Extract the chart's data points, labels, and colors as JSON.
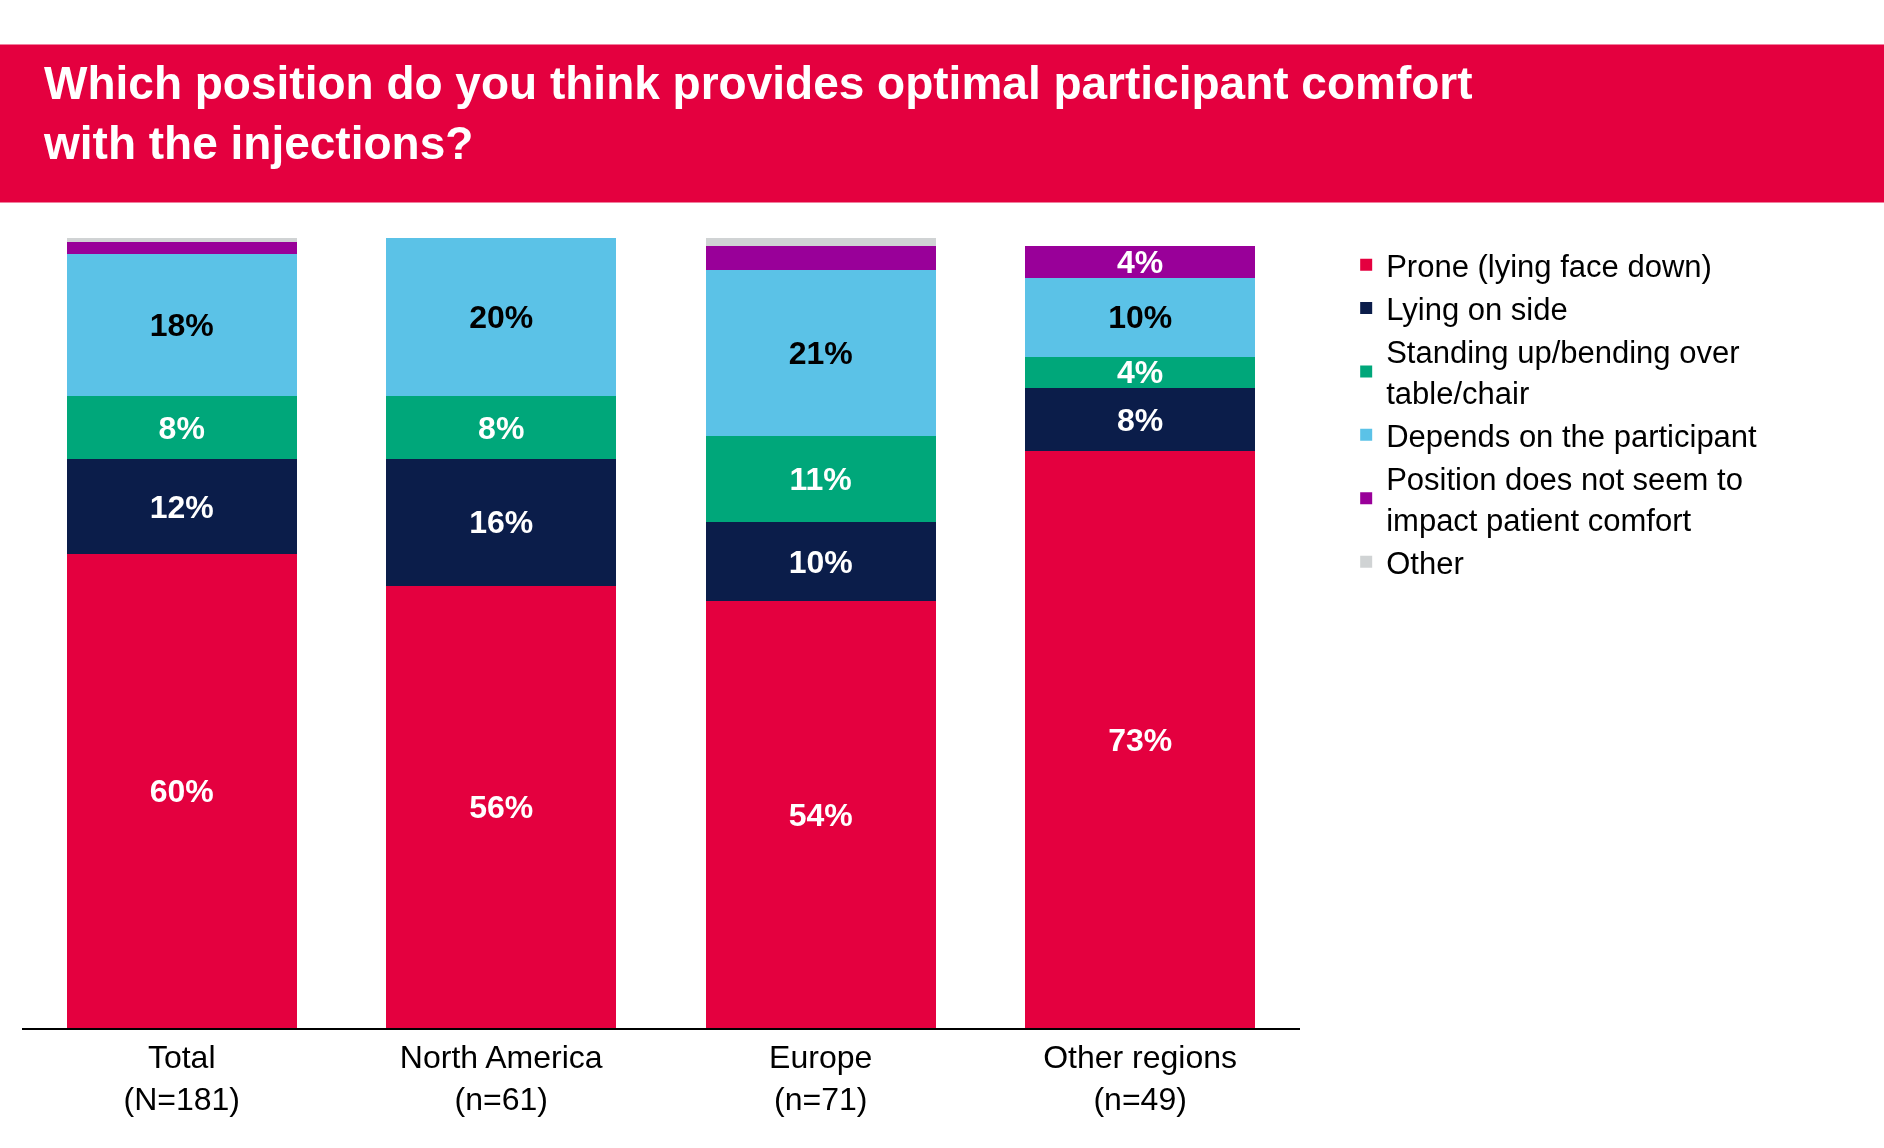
{
  "chart_data": {
    "type": "bar",
    "stacked": true,
    "title": "Which position do you think provides optimal participant comfort with the injections?",
    "categories": [
      "Total\n(N=181)",
      "North America\n(n=61)",
      "Europe\n(n=71)",
      "Other regions\n(n=49)"
    ],
    "series": [
      {
        "name": "Prone (lying face down)",
        "color": "#e4003f",
        "values": [
          60,
          56,
          54,
          73
        ],
        "value_labels": [
          "60%",
          "56%",
          "54%",
          "73%"
        ]
      },
      {
        "name": "Lying on side",
        "color": "#0b1d4a",
        "values": [
          12,
          16,
          10,
          8
        ],
        "value_labels": [
          "12%",
          "16%",
          "10%",
          "8%"
        ]
      },
      {
        "name": "Standing up/bending over table/chair",
        "color": "#00a77a",
        "values": [
          8,
          8,
          11,
          4
        ],
        "value_labels": [
          "8%",
          "8%",
          "11%",
          "4%"
        ]
      },
      {
        "name": "Depends on the participant",
        "color": "#5bc2e7",
        "values": [
          18,
          20,
          21,
          10
        ],
        "value_labels": [
          "18%",
          "20%",
          "21%",
          "10%"
        ]
      },
      {
        "name": "Position does not seem to impact patient comfort",
        "color": "#990099",
        "values": [
          1.5,
          0,
          3,
          4
        ],
        "value_labels": [
          null,
          null,
          null,
          "4%"
        ]
      },
      {
        "name": "Other",
        "color": "#d0d3d4",
        "values": [
          0.5,
          0,
          1,
          0
        ],
        "value_labels": [
          null,
          null,
          null,
          null
        ]
      }
    ],
    "ylim": [
      0,
      100
    ],
    "tick_labels": "x",
    "legend": "top right"
  }
}
